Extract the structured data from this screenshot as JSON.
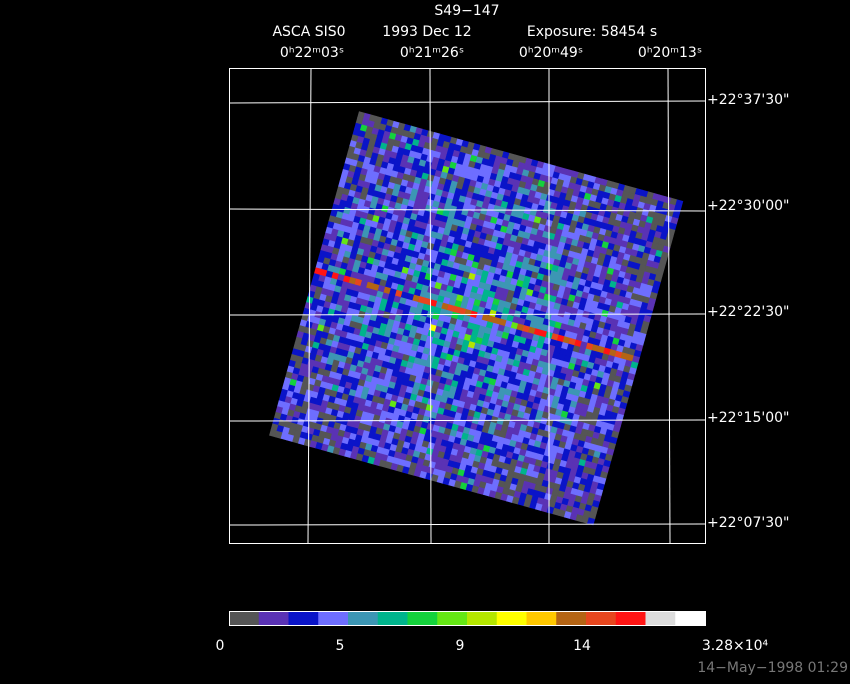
{
  "header": {
    "object": "S49−147",
    "instrument": "ASCA SIS0",
    "date": "1993 Dec 12",
    "exposure": "Exposure: 58454 s"
  },
  "ra_labels": [
    "0ʰ22ᵐ03ˢ",
    "0ʰ21ᵐ26ˢ",
    "0ʰ20ᵐ49ˢ",
    "0ʰ20ᵐ13ˢ"
  ],
  "dec_labels": [
    "+22°37'30\"",
    "+22°30'00\"",
    "+22°22'30\"",
    "+22°15'00\"",
    "+22°07'30\""
  ],
  "colorbar": {
    "colors": [
      "#555555",
      "#5a32b4",
      "#0a14c8",
      "#6e6eff",
      "#3c96b4",
      "#00b48c",
      "#14d23c",
      "#64e614",
      "#b4e600",
      "#ffff00",
      "#ffc800",
      "#b46414",
      "#e6461e",
      "#ff1414",
      "#dcdcdc",
      "#ffffff"
    ],
    "labels": [
      "0",
      "5",
      "9",
      "14",
      "3.28×10⁴"
    ]
  },
  "footer": {
    "timestamp": "14−May−1998 01:29"
  }
}
